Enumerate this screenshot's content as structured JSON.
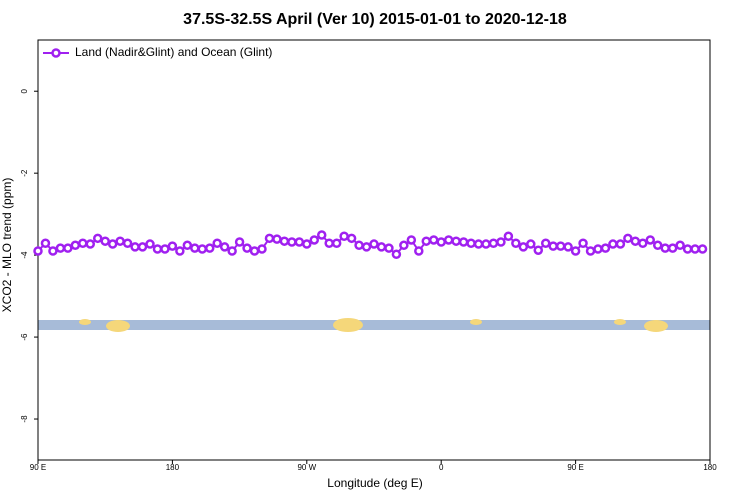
{
  "chart_data": {
    "type": "line",
    "title": "37.5S-32.5S April (Ver 10)   2015-01-01 to 2020-12-18",
    "x_label": "Longitude (deg E)",
    "y_label": "XCO2 - MLO trend (ppm)",
    "xlim": [
      90,
      540
    ],
    "ylim": [
      -9.0,
      1.25
    ],
    "xticks": [
      {
        "value": 90,
        "label": "90 E"
      },
      180,
      {
        "value": 270,
        "label": "90 W"
      },
      {
        "value": 360,
        "label": "0"
      },
      {
        "value": 450,
        "label": "90 E"
      },
      {
        "value": 540,
        "label": "180"
      }
    ],
    "yticks": [
      0,
      -2,
      -4,
      -6,
      -8
    ],
    "legend": "top-left",
    "x": [
      90,
      95,
      100,
      105,
      110,
      115,
      120,
      125,
      130,
      135,
      140,
      145,
      150,
      155,
      160,
      165,
      170,
      175,
      180,
      185,
      190,
      195,
      200,
      205,
      210,
      215,
      220,
      225,
      230,
      235,
      240,
      245,
      250,
      255,
      260,
      265,
      270,
      275,
      280,
      285,
      290,
      295,
      300,
      305,
      310,
      315,
      320,
      325,
      330,
      335,
      340,
      345,
      350,
      355,
      360,
      365,
      370,
      375,
      380,
      385,
      390,
      395,
      400,
      405,
      410,
      415,
      420,
      425,
      430,
      435,
      440,
      445,
      450,
      455,
      460,
      465,
      470,
      475,
      480,
      485,
      490,
      495,
      500,
      505,
      510,
      515,
      520,
      525,
      530,
      535
    ],
    "series": [
      {
        "name": "Land (Nadir&Glint) and Ocean (Glint)",
        "color": "#a020f0",
        "values": [
          -3.9,
          -3.71,
          -3.9,
          -3.83,
          -3.83,
          -3.76,
          -3.71,
          -3.73,
          -3.59,
          -3.66,
          -3.73,
          -3.66,
          -3.71,
          -3.8,
          -3.8,
          -3.73,
          -3.85,
          -3.85,
          -3.78,
          -3.9,
          -3.76,
          -3.83,
          -3.85,
          -3.83,
          -3.71,
          -3.8,
          -3.9,
          -3.68,
          -3.83,
          -3.9,
          -3.85,
          -3.59,
          -3.61,
          -3.66,
          -3.68,
          -3.68,
          -3.73,
          -3.63,
          -3.51,
          -3.71,
          -3.71,
          -3.54,
          -3.59,
          -3.76,
          -3.8,
          -3.73,
          -3.8,
          -3.83,
          -3.98,
          -3.76,
          -3.63,
          -3.9,
          -3.66,
          -3.63,
          -3.68,
          -3.63,
          -3.66,
          -3.68,
          -3.71,
          -3.73,
          -3.73,
          -3.71,
          -3.68,
          -3.54,
          -3.71,
          -3.8,
          -3.73,
          -3.88,
          -3.71,
          -3.78,
          -3.78,
          -3.8,
          -3.9,
          -3.71,
          -3.9,
          -3.85,
          -3.83,
          -3.73,
          -3.73,
          -3.59,
          -3.66,
          -3.71,
          -3.63,
          -3.76,
          -3.83,
          -3.83,
          -3.76,
          -3.85,
          -3.85,
          -3.85
        ]
      }
    ]
  }
}
